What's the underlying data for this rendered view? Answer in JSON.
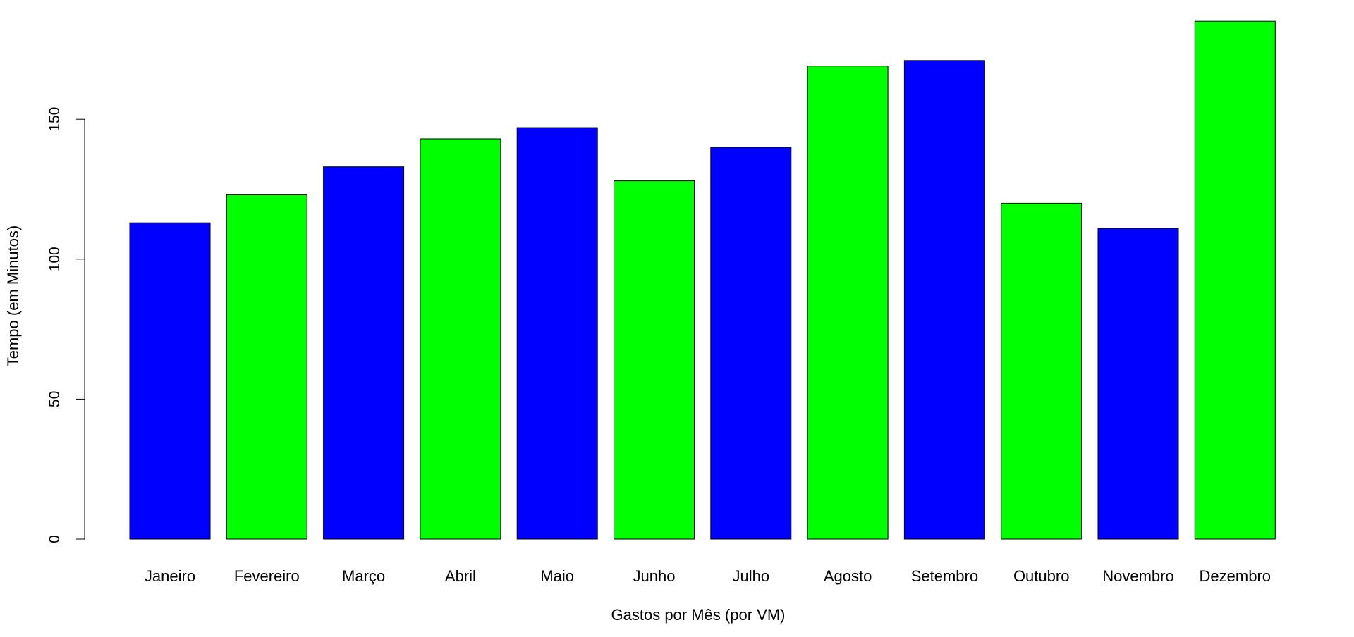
{
  "chart_data": {
    "type": "bar",
    "title": "",
    "xlabel": "Gastos por Mês (por VM)",
    "ylabel": "Tempo (em Minutos)",
    "categories": [
      "Janeiro",
      "Fevereiro",
      "Março",
      "Abril",
      "Maio",
      "Junho",
      "Julho",
      "Agosto",
      "Setembro",
      "Outubro",
      "Novembro",
      "Dezembro"
    ],
    "values": [
      113,
      123,
      133,
      143,
      147,
      128,
      140,
      169,
      171,
      120,
      111,
      185
    ],
    "bar_colors": [
      "#0000ff",
      "#00ff00",
      "#0000ff",
      "#00ff00",
      "#0000ff",
      "#00ff00",
      "#0000ff",
      "#00ff00",
      "#0000ff",
      "#00ff00",
      "#0000ff",
      "#00ff00"
    ],
    "yticks": [
      "0",
      "50",
      "100",
      "150"
    ],
    "ylim": [
      0,
      185
    ],
    "grid": false,
    "legend": "none"
  }
}
